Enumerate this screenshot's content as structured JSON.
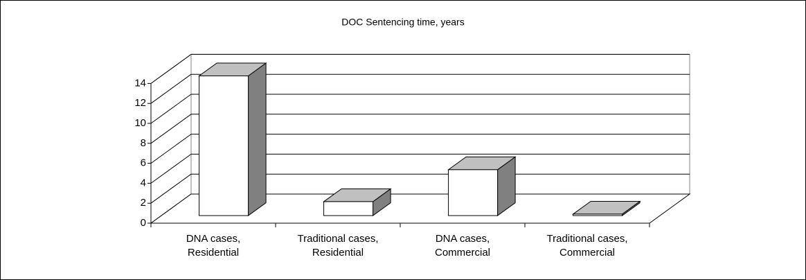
{
  "chart_data": {
    "type": "bar3d",
    "title": "DOC Sentencing time, years",
    "categories": [
      "DNA cases, Residential",
      "Traditional cases, Residential",
      "DNA cases, Commercial",
      "Traditional cases, Commercial"
    ],
    "values": [
      14,
      1.4,
      4.6,
      0.15
    ],
    "color": "#ffffff",
    "ylim": [
      0,
      14
    ],
    "yticks": [
      0,
      2,
      4,
      6,
      8,
      10,
      12,
      14
    ],
    "grid": true
  }
}
